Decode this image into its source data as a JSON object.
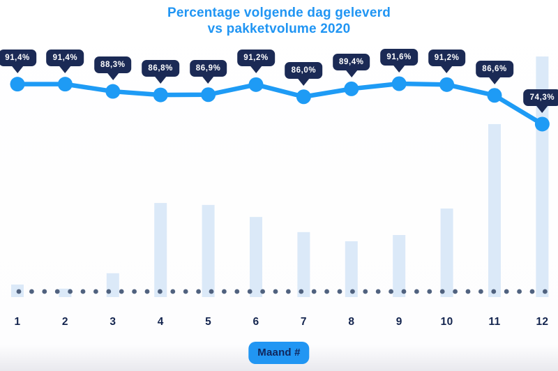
{
  "title": {
    "line1": "Percentage volgende dag geleverd",
    "line2": "vs pakketvolume 2020"
  },
  "x_axis": {
    "label": "Maand #"
  },
  "colors": {
    "title_blue": "#2095f3",
    "line_blue": "#1e9bf5",
    "bar_light_blue": "#dbe9f8",
    "tooltip_navy": "#1b2a55",
    "tooltip_text": "#ffffff",
    "dot_slate": "#50627f",
    "axis_navy": "#14254f",
    "pill_bg": "#2196f3",
    "pill_text": "#10265c"
  },
  "chart_data": {
    "type": "combo",
    "subtypes": [
      "line",
      "bar"
    ],
    "title": "Percentage volgende dag geleverd vs pakketvolume 2020",
    "xlabel": "Maand #",
    "ylabel": "",
    "legend": false,
    "gridlines": false,
    "baseline_style": "dotted",
    "categories": [
      "1",
      "2",
      "3",
      "4",
      "5",
      "6",
      "7",
      "8",
      "9",
      "10",
      "11",
      "12"
    ],
    "series": [
      {
        "name": "Percentage volgende dag geleverd",
        "type": "line",
        "unit": "%",
        "values": [
          91.4,
          91.4,
          88.3,
          86.8,
          86.9,
          91.2,
          86.0,
          89.4,
          91.6,
          91.2,
          86.6,
          74.3
        ],
        "labels": [
          "91,4%",
          "91,4%",
          "88,3%",
          "86,8%",
          "86,9%",
          "91,2%",
          "86,0%",
          "89,4%",
          "91,6%",
          "91,2%",
          "86,6%",
          "74,3%"
        ]
      },
      {
        "name": "Pakketvolume 2020",
        "type": "bar",
        "unit": "relative index (no numeric axis shown, Dec = 100)",
        "values": [
          5.2,
          3.5,
          9.9,
          39.1,
          38.3,
          33.3,
          27.0,
          23.2,
          25.8,
          36.8,
          71.9,
          100
        ]
      }
    ]
  }
}
